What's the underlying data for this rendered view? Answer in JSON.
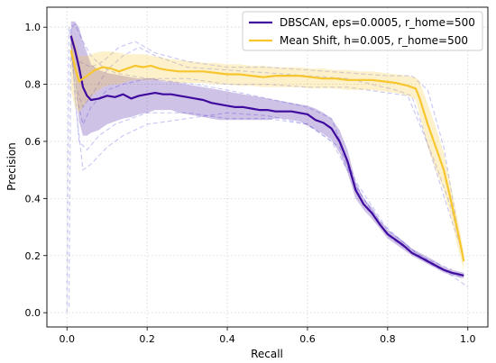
{
  "chart_data": {
    "type": "line",
    "title": "",
    "xlabel": "Recall",
    "ylabel": "Precision",
    "xlim": [
      -0.05,
      1.05
    ],
    "ylim": [
      -0.05,
      1.07
    ],
    "x_ticks": [
      0.0,
      0.2,
      0.4,
      0.6,
      0.8,
      1.0
    ],
    "x_tick_labels": [
      "0.0",
      "0.2",
      "0.4",
      "0.6",
      "0.8",
      "1.0"
    ],
    "y_ticks": [
      0.0,
      0.2,
      0.4,
      0.6,
      0.8,
      1.0
    ],
    "y_tick_labels": [
      "0.0",
      "0.2",
      "0.4",
      "0.6",
      "0.8",
      "1.0"
    ],
    "grid": true,
    "legend_position": "top-right",
    "series": [
      {
        "name": "DBSCAN, eps=0.0005, r_home=500",
        "color": "#3f0a9e",
        "x": [
          0.01,
          0.02,
          0.03,
          0.04,
          0.05,
          0.06,
          0.08,
          0.1,
          0.12,
          0.14,
          0.16,
          0.18,
          0.2,
          0.22,
          0.24,
          0.26,
          0.28,
          0.3,
          0.32,
          0.34,
          0.36,
          0.38,
          0.4,
          0.42,
          0.44,
          0.46,
          0.48,
          0.5,
          0.52,
          0.54,
          0.56,
          0.58,
          0.6,
          0.62,
          0.64,
          0.66,
          0.68,
          0.7,
          0.72,
          0.74,
          0.76,
          0.78,
          0.8,
          0.82,
          0.84,
          0.86,
          0.88,
          0.9,
          0.92,
          0.94,
          0.96,
          0.99
        ],
        "y": [
          0.97,
          0.92,
          0.86,
          0.79,
          0.76,
          0.745,
          0.75,
          0.76,
          0.755,
          0.765,
          0.75,
          0.76,
          0.765,
          0.77,
          0.765,
          0.765,
          0.76,
          0.755,
          0.75,
          0.745,
          0.735,
          0.73,
          0.725,
          0.72,
          0.72,
          0.715,
          0.71,
          0.71,
          0.705,
          0.705,
          0.705,
          0.7,
          0.695,
          0.675,
          0.665,
          0.645,
          0.6,
          0.53,
          0.43,
          0.38,
          0.35,
          0.31,
          0.275,
          0.255,
          0.235,
          0.21,
          0.195,
          0.18,
          0.165,
          0.15,
          0.14,
          0.13
        ],
        "lower": [
          0.9,
          0.82,
          0.67,
          0.62,
          0.62,
          0.63,
          0.64,
          0.66,
          0.67,
          0.68,
          0.685,
          0.695,
          0.7,
          0.71,
          0.71,
          0.71,
          0.7,
          0.695,
          0.69,
          0.685,
          0.68,
          0.675,
          0.675,
          0.675,
          0.675,
          0.675,
          0.675,
          0.675,
          0.68,
          0.68,
          0.675,
          0.67,
          0.655,
          0.64,
          0.625,
          0.605,
          0.56,
          0.49,
          0.4,
          0.36,
          0.33,
          0.295,
          0.26,
          0.24,
          0.22,
          0.2,
          0.185,
          0.17,
          0.155,
          0.14,
          0.13,
          0.12
        ],
        "upper": [
          1.02,
          1.02,
          1.0,
          0.95,
          0.91,
          0.87,
          0.85,
          0.84,
          0.835,
          0.83,
          0.825,
          0.82,
          0.82,
          0.82,
          0.81,
          0.81,
          0.805,
          0.8,
          0.795,
          0.79,
          0.785,
          0.78,
          0.775,
          0.77,
          0.765,
          0.76,
          0.755,
          0.75,
          0.745,
          0.74,
          0.735,
          0.73,
          0.725,
          0.715,
          0.7,
          0.68,
          0.64,
          0.57,
          0.46,
          0.4,
          0.37,
          0.325,
          0.29,
          0.27,
          0.25,
          0.225,
          0.21,
          0.195,
          0.18,
          0.16,
          0.15,
          0.14
        ]
      },
      {
        "name": "Mean Shift, h=0.005, r_home=500",
        "color": "#f7c62f",
        "x": [
          0.01,
          0.02,
          0.03,
          0.05,
          0.07,
          0.09,
          0.11,
          0.13,
          0.15,
          0.17,
          0.19,
          0.21,
          0.23,
          0.25,
          0.28,
          0.31,
          0.34,
          0.37,
          0.4,
          0.43,
          0.46,
          0.49,
          0.52,
          0.55,
          0.58,
          0.61,
          0.64,
          0.67,
          0.7,
          0.73,
          0.76,
          0.79,
          0.82,
          0.85,
          0.87,
          0.88,
          0.9,
          0.92,
          0.94,
          0.96,
          0.98,
          0.99
        ],
        "y": [
          0.92,
          0.86,
          0.81,
          0.83,
          0.85,
          0.86,
          0.855,
          0.845,
          0.855,
          0.865,
          0.86,
          0.865,
          0.855,
          0.85,
          0.845,
          0.845,
          0.845,
          0.84,
          0.835,
          0.835,
          0.83,
          0.825,
          0.83,
          0.83,
          0.83,
          0.825,
          0.82,
          0.82,
          0.815,
          0.815,
          0.815,
          0.81,
          0.805,
          0.795,
          0.785,
          0.75,
          0.66,
          0.58,
          0.5,
          0.38,
          0.25,
          0.18
        ],
        "lower": [
          0.78,
          0.72,
          0.7,
          0.74,
          0.77,
          0.79,
          0.8,
          0.8,
          0.81,
          0.815,
          0.815,
          0.815,
          0.815,
          0.81,
          0.805,
          0.805,
          0.805,
          0.8,
          0.8,
          0.795,
          0.795,
          0.79,
          0.79,
          0.79,
          0.79,
          0.785,
          0.785,
          0.785,
          0.78,
          0.78,
          0.78,
          0.775,
          0.77,
          0.76,
          0.745,
          0.69,
          0.58,
          0.5,
          0.43,
          0.32,
          0.2,
          0.15
        ],
        "upper": [
          0.98,
          0.95,
          0.9,
          0.9,
          0.91,
          0.915,
          0.915,
          0.91,
          0.905,
          0.905,
          0.905,
          0.9,
          0.895,
          0.89,
          0.885,
          0.88,
          0.875,
          0.875,
          0.87,
          0.87,
          0.865,
          0.865,
          0.86,
          0.86,
          0.86,
          0.855,
          0.855,
          0.85,
          0.85,
          0.845,
          0.845,
          0.84,
          0.835,
          0.83,
          0.825,
          0.81,
          0.73,
          0.65,
          0.56,
          0.43,
          0.29,
          0.21
        ]
      }
    ],
    "background_runs": [
      {
        "color": "#8a8aee",
        "x": [
          0.0,
          0.005,
          0.01,
          0.03,
          0.05,
          0.08,
          0.12,
          0.16,
          0.2,
          0.3,
          0.4,
          0.5,
          0.6,
          0.66,
          0.7,
          0.74,
          0.8,
          0.86,
          0.92,
          0.99
        ],
        "y": [
          0.0,
          1.0,
          0.95,
          0.6,
          0.57,
          0.62,
          0.66,
          0.68,
          0.7,
          0.7,
          0.68,
          0.68,
          0.66,
          0.6,
          0.5,
          0.4,
          0.27,
          0.21,
          0.16,
          0.12
        ]
      },
      {
        "color": "#8a8aee",
        "x": [
          0.005,
          0.01,
          0.02,
          0.04,
          0.06,
          0.09,
          0.12,
          0.16,
          0.2,
          0.26,
          0.32,
          0.4,
          0.5,
          0.6,
          0.66,
          0.72,
          0.8,
          0.88,
          0.96
        ],
        "y": [
          0.02,
          1.0,
          1.01,
          0.95,
          0.9,
          0.86,
          0.84,
          0.83,
          0.82,
          0.81,
          0.8,
          0.78,
          0.75,
          0.72,
          0.68,
          0.46,
          0.29,
          0.2,
          0.15
        ]
      },
      {
        "color": "#8a8aee",
        "x": [
          0.01,
          0.02,
          0.04,
          0.06,
          0.1,
          0.14,
          0.2,
          0.3,
          0.4,
          0.5,
          0.6,
          0.68,
          0.72,
          0.78,
          0.86,
          0.94,
          1.0
        ],
        "y": [
          0.98,
          0.75,
          0.5,
          0.52,
          0.58,
          0.62,
          0.66,
          0.68,
          0.7,
          0.69,
          0.66,
          0.58,
          0.44,
          0.32,
          0.22,
          0.15,
          0.09
        ]
      },
      {
        "color": "#8a8aee",
        "x": [
          0.01,
          0.02,
          0.04,
          0.07,
          0.1,
          0.14,
          0.18,
          0.22,
          0.3,
          0.4,
          0.5,
          0.6,
          0.7,
          0.76,
          0.82,
          0.86,
          0.88,
          0.92,
          0.96,
          0.99
        ],
        "y": [
          0.9,
          0.8,
          0.72,
          0.78,
          0.85,
          0.9,
          0.93,
          0.9,
          0.86,
          0.85,
          0.84,
          0.83,
          0.82,
          0.8,
          0.78,
          0.76,
          0.68,
          0.5,
          0.32,
          0.2
        ]
      },
      {
        "color": "#8a8aee",
        "x": [
          0.01,
          0.03,
          0.06,
          0.09,
          0.13,
          0.17,
          0.22,
          0.3,
          0.4,
          0.5,
          0.6,
          0.7,
          0.8,
          0.86,
          0.9,
          0.94,
          0.98
        ],
        "y": [
          0.95,
          0.88,
          0.86,
          0.88,
          0.93,
          0.95,
          0.91,
          0.88,
          0.86,
          0.86,
          0.85,
          0.84,
          0.83,
          0.83,
          0.78,
          0.58,
          0.25
        ]
      },
      {
        "color": "#8a8aee",
        "x": [
          0.02,
          0.04,
          0.06,
          0.1,
          0.14,
          0.2,
          0.3,
          0.4,
          0.5,
          0.6,
          0.7,
          0.8,
          0.85,
          0.88,
          0.92,
          0.96,
          0.99
        ],
        "y": [
          0.78,
          0.66,
          0.72,
          0.78,
          0.8,
          0.82,
          0.82,
          0.8,
          0.8,
          0.79,
          0.79,
          0.77,
          0.76,
          0.66,
          0.52,
          0.36,
          0.18
        ]
      }
    ]
  }
}
